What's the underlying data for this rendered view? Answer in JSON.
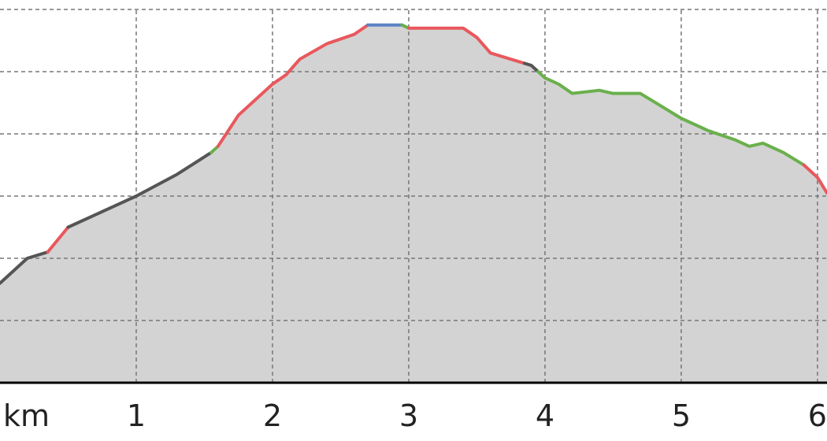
{
  "chart_data": {
    "type": "area",
    "x_unit": "km",
    "x_ticks": [
      1,
      2,
      3,
      4,
      5,
      6
    ],
    "x_tick_labels": [
      "1",
      "2",
      "3",
      "4",
      "5",
      "6"
    ],
    "xlim": [
      0,
      6.07
    ],
    "ylim": [
      0,
      6
    ],
    "grid": true,
    "fill_color": "#d3d3d3",
    "baseline_color": "#000000",
    "grid_color": "#777777",
    "profile": [
      [
        0.0,
        1.6
      ],
      [
        0.2,
        2.0
      ],
      [
        0.35,
        2.1
      ],
      [
        0.5,
        2.5
      ],
      [
        0.8,
        2.8
      ],
      [
        1.0,
        3.0
      ],
      [
        1.3,
        3.35
      ],
      [
        1.55,
        3.7
      ],
      [
        1.6,
        3.8
      ],
      [
        1.75,
        4.3
      ],
      [
        1.9,
        4.6
      ],
      [
        2.0,
        4.8
      ],
      [
        2.1,
        4.95
      ],
      [
        2.2,
        5.2
      ],
      [
        2.4,
        5.45
      ],
      [
        2.6,
        5.6
      ],
      [
        2.7,
        5.75
      ],
      [
        2.8,
        5.75
      ],
      [
        2.95,
        5.75
      ],
      [
        3.0,
        5.7
      ],
      [
        3.2,
        5.7
      ],
      [
        3.4,
        5.7
      ],
      [
        3.5,
        5.55
      ],
      [
        3.6,
        5.3
      ],
      [
        3.75,
        5.2
      ],
      [
        3.9,
        5.1
      ],
      [
        4.0,
        4.9
      ],
      [
        4.1,
        4.8
      ],
      [
        4.2,
        4.65
      ],
      [
        4.4,
        4.7
      ],
      [
        4.5,
        4.65
      ],
      [
        4.7,
        4.65
      ],
      [
        4.85,
        4.45
      ],
      [
        5.0,
        4.25
      ],
      [
        5.2,
        4.05
      ],
      [
        5.4,
        3.9
      ],
      [
        5.5,
        3.8
      ],
      [
        5.6,
        3.85
      ],
      [
        5.75,
        3.7
      ],
      [
        5.9,
        3.5
      ],
      [
        6.0,
        3.3
      ],
      [
        6.07,
        3.05
      ]
    ],
    "segments": [
      {
        "color": "#555555",
        "from": 0.0,
        "to": 0.35
      },
      {
        "color": "#e8585d",
        "from": 0.35,
        "to": 0.5
      },
      {
        "color": "#555555",
        "from": 0.5,
        "to": 1.55
      },
      {
        "color": "#6ab04c",
        "from": 1.55,
        "to": 1.6
      },
      {
        "color": "#e8585d",
        "from": 1.6,
        "to": 2.7
      },
      {
        "color": "#5b82c4",
        "from": 2.7,
        "to": 2.95
      },
      {
        "color": "#6ab04c",
        "from": 2.95,
        "to": 3.0
      },
      {
        "color": "#e8585d",
        "from": 3.0,
        "to": 3.85
      },
      {
        "color": "#555555",
        "from": 3.85,
        "to": 3.95
      },
      {
        "color": "#6ab04c",
        "from": 3.95,
        "to": 5.9
      },
      {
        "color": "#e8585d",
        "from": 5.9,
        "to": 6.07
      }
    ]
  }
}
